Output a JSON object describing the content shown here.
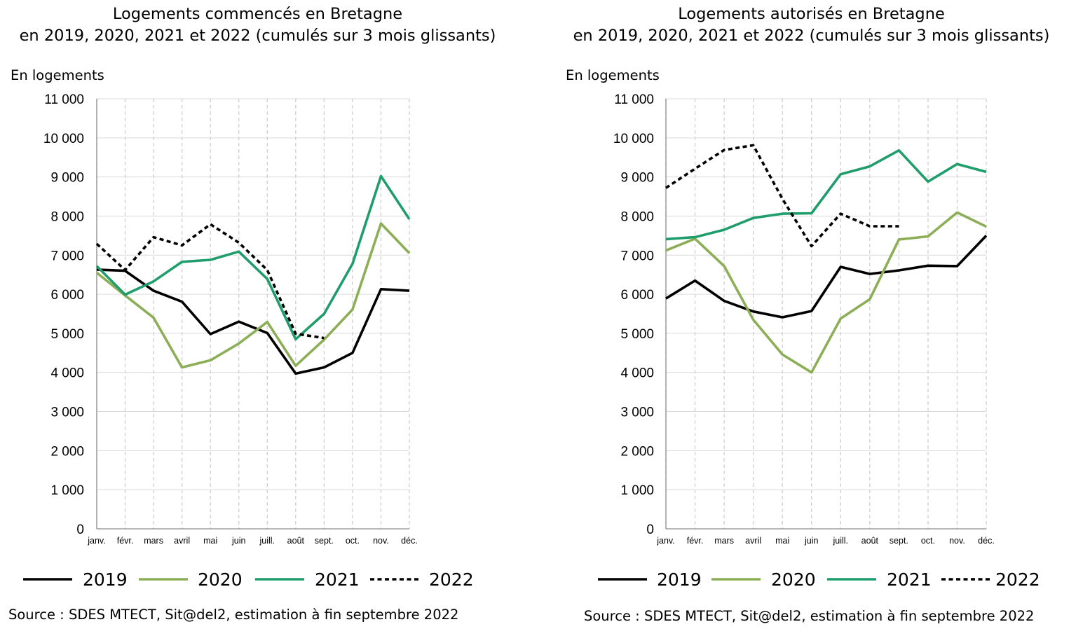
{
  "chart_data": [
    {
      "type": "line",
      "title": "Logements commencés en Bretagne",
      "subtitle": "en 2019, 2020, 2021 et 2022  (cumulés sur 3 mois glissants)",
      "ylabel": "En logements",
      "source": "Source : SDES MTECT, Sit@del2, estimation à fin septembre 2022",
      "ylim": [
        0,
        11000
      ],
      "yticks": [
        0,
        1000,
        2000,
        3000,
        4000,
        5000,
        6000,
        7000,
        8000,
        9000,
        10000,
        11000
      ],
      "ytick_labels": [
        "0",
        "1 000",
        "2 000",
        "3 000",
        "4 000",
        "5 000",
        "6 000",
        "7 000",
        "8 000",
        "9 000",
        "10 000",
        "11 000"
      ],
      "categories": [
        "janv.",
        "févr.",
        "mars",
        "avril",
        "mai",
        "juin",
        "juill.",
        "août",
        "sept.",
        "oct.",
        "nov.",
        "déc."
      ],
      "grid": "vertical and horizontal, dashed vertical",
      "legend_position": "bottom",
      "series": [
        {
          "name": "2019",
          "color": "#000000",
          "dash": "solid",
          "values": [
            6630,
            6600,
            6090,
            5810,
            4980,
            5300,
            5010,
            3970,
            4130,
            4500,
            6130,
            6090
          ]
        },
        {
          "name": "2020",
          "color": "#8cae57",
          "dash": "solid",
          "values": [
            6550,
            5970,
            5400,
            4130,
            4310,
            4740,
            5290,
            4170,
            4840,
            5610,
            7810,
            7050
          ]
        },
        {
          "name": "2021",
          "color": "#1f9d6b",
          "dash": "solid",
          "values": [
            6720,
            5990,
            6330,
            6830,
            6880,
            7090,
            6390,
            4850,
            5500,
            6780,
            9020,
            7920
          ]
        },
        {
          "name": "2022",
          "color": "#000000",
          "dash": "dashed",
          "values": [
            7290,
            6620,
            7460,
            7250,
            7790,
            7320,
            6620,
            4990,
            4880,
            null,
            null,
            null
          ]
        }
      ]
    },
    {
      "type": "line",
      "title": "Logements autorisés en Bretagne",
      "subtitle": "en 2019, 2020, 2021 et 2022 (cumulés sur 3 mois glissants)",
      "ylabel": "En logements",
      "source": "Source : SDES MTECT, Sit@del2, estimation à fin septembre 2022",
      "ylim": [
        0,
        11000
      ],
      "yticks": [
        0,
        1000,
        2000,
        3000,
        4000,
        5000,
        6000,
        7000,
        8000,
        9000,
        10000,
        11000
      ],
      "ytick_labels": [
        "0",
        "1 000",
        "2 000",
        "3 000",
        "4 000",
        "5 000",
        "6 000",
        "7 000",
        "8 000",
        "9 000",
        "10 000",
        "11 000"
      ],
      "categories": [
        "janv.",
        "févr.",
        "mars",
        "avril",
        "mai",
        "juin",
        "juill.",
        "août",
        "sept.",
        "oct.",
        "nov.",
        "déc."
      ],
      "grid": "vertical and horizontal, dashed vertical",
      "legend_position": "bottom",
      "series": [
        {
          "name": "2019",
          "color": "#000000",
          "dash": "solid",
          "values": [
            5890,
            6350,
            5830,
            5560,
            5410,
            5570,
            6700,
            6520,
            6610,
            6730,
            6720,
            7500
          ]
        },
        {
          "name": "2020",
          "color": "#8cae57",
          "dash": "solid",
          "values": [
            7120,
            7420,
            6720,
            5350,
            4460,
            4000,
            5380,
            5870,
            7400,
            7480,
            8090,
            7730
          ]
        },
        {
          "name": "2021",
          "color": "#1f9d6b",
          "dash": "solid",
          "values": [
            7410,
            7460,
            7650,
            7950,
            8060,
            8070,
            9070,
            9270,
            9680,
            8880,
            9330,
            9130
          ]
        },
        {
          "name": "2022",
          "color": "#000000",
          "dash": "dashed",
          "values": [
            8720,
            9210,
            9690,
            9810,
            8440,
            7230,
            8060,
            7740,
            7740,
            null,
            null,
            null
          ]
        }
      ]
    }
  ]
}
